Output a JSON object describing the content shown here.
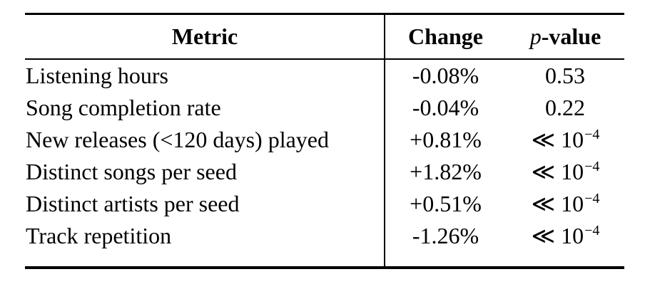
{
  "table": {
    "headers": {
      "metric": "Metric",
      "change": "Change",
      "pvalue_italic": "p",
      "pvalue_rest": "-value"
    },
    "rows": [
      {
        "metric": "Listening hours",
        "change": "-0.08%",
        "p_base": "0.53",
        "p_sup": ""
      },
      {
        "metric": "Song completion rate",
        "change": "-0.04%",
        "p_base": "0.22",
        "p_sup": ""
      },
      {
        "metric": "New releases (<120 days) played",
        "change": "+0.81%",
        "p_base": "≪ 10",
        "p_sup": "−4"
      },
      {
        "metric": "Distinct songs per seed",
        "change": "+1.82%",
        "p_base": "≪ 10",
        "p_sup": "−4"
      },
      {
        "metric": "Distinct artists per seed",
        "change": "+0.51%",
        "p_base": "≪ 10",
        "p_sup": "−4"
      },
      {
        "metric": "Track repetition",
        "change": "-1.26%",
        "p_base": "≪ 10",
        "p_sup": "−4"
      }
    ],
    "rules": {
      "top_rule_color": "#000000",
      "header_rule_color": "#000000",
      "bottom_rule_color": "#000000"
    }
  }
}
